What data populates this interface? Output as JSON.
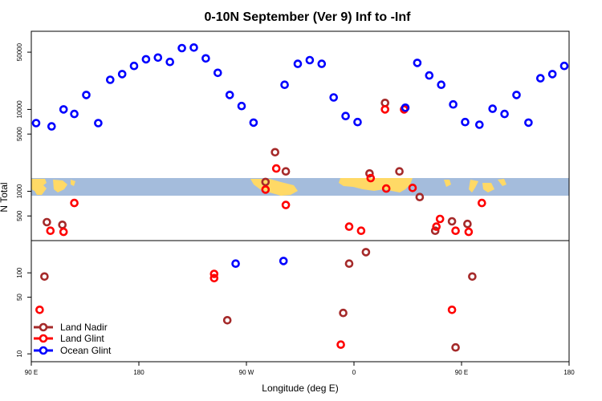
{
  "chart_data": {
    "type": "scatter",
    "title": "0-10N September (Ver 9)   Inf to -Inf",
    "xlabel": "Longitude (deg E)",
    "ylabel": "N Total",
    "x_ticks": [
      {
        "value": 90,
        "label": "90 E"
      },
      {
        "value": 180,
        "label": "180"
      },
      {
        "value": 270,
        "label": "90 W"
      },
      {
        "value": 360,
        "label": "0"
      },
      {
        "value": 450,
        "label": "90 E"
      },
      {
        "value": 540,
        "label": "180"
      }
    ],
    "xlim": [
      90,
      540
    ],
    "y_ticks_top": [
      50000,
      10000,
      5000,
      1000,
      500
    ],
    "y_ticks_bottom": [
      100,
      50,
      10
    ],
    "ylim_top_log": [
      250,
      90000
    ],
    "ylim_bottom_log": [
      8,
      250
    ],
    "legend_position": "bottom-left",
    "grid": false,
    "colors": {
      "Land Nadir": "#a52a2a",
      "Land Glint": "#ff0000",
      "Ocean Glint": "#0000ff",
      "land": "#ffd966",
      "ocean": "#a4bcdc"
    },
    "series": [
      {
        "name": "Land Nadir",
        "color": "#a52a2a",
        "points": [
          [
            103,
            420
          ],
          [
            116,
            390
          ],
          [
            286,
            1300
          ],
          [
            294,
            3000
          ],
          [
            303,
            1750
          ],
          [
            373,
            1650
          ],
          [
            386,
            12000
          ],
          [
            398,
            1750
          ],
          [
            415,
            850
          ],
          [
            428,
            330
          ],
          [
            442,
            430
          ],
          [
            455,
            400
          ],
          [
            254,
            26
          ],
          [
            351,
            32
          ],
          [
            356,
            130
          ],
          [
            370,
            180
          ],
          [
            445,
            12
          ],
          [
            459,
            90
          ],
          [
            101,
            90
          ]
        ]
      },
      {
        "name": "Land Glint",
        "color": "#ff0000",
        "points": [
          [
            106,
            330
          ],
          [
            117,
            320
          ],
          [
            126,
            720
          ],
          [
            286,
            1050
          ],
          [
            295,
            1900
          ],
          [
            303,
            680
          ],
          [
            356,
            370
          ],
          [
            366,
            330
          ],
          [
            374,
            1450
          ],
          [
            387,
            1080
          ],
          [
            386,
            10000
          ],
          [
            402,
            10000
          ],
          [
            409,
            1100
          ],
          [
            429,
            370
          ],
          [
            432,
            460
          ],
          [
            445,
            330
          ],
          [
            456,
            320
          ],
          [
            467,
            720
          ],
          [
            97,
            35
          ],
          [
            243,
            97
          ],
          [
            243,
            86
          ],
          [
            349,
            13
          ],
          [
            442,
            35
          ]
        ]
      },
      {
        "name": "Ocean Glint",
        "color": "#0000ff",
        "points": [
          [
            94,
            6800
          ],
          [
            107,
            6200
          ],
          [
            117,
            10000
          ],
          [
            126,
            8800
          ],
          [
            136,
            15000
          ],
          [
            146,
            6800
          ],
          [
            156,
            23000
          ],
          [
            166,
            27000
          ],
          [
            176,
            34000
          ],
          [
            186,
            41000
          ],
          [
            196,
            43000
          ],
          [
            206,
            38000
          ],
          [
            216,
            56000
          ],
          [
            226,
            57000
          ],
          [
            236,
            42000
          ],
          [
            246,
            28000
          ],
          [
            256,
            15000
          ],
          [
            266,
            11000
          ],
          [
            276,
            6900
          ],
          [
            302,
            20000
          ],
          [
            313,
            36000
          ],
          [
            323,
            40000
          ],
          [
            333,
            36000
          ],
          [
            343,
            14000
          ],
          [
            353,
            8300
          ],
          [
            363,
            7000
          ],
          [
            403,
            10500
          ],
          [
            413,
            37000
          ],
          [
            423,
            26000
          ],
          [
            433,
            20000
          ],
          [
            443,
            11500
          ],
          [
            453,
            7000
          ],
          [
            465,
            6500
          ],
          [
            476,
            10200
          ],
          [
            486,
            8800
          ],
          [
            496,
            15000
          ],
          [
            506,
            6900
          ],
          [
            516,
            24000
          ],
          [
            526,
            27000
          ],
          [
            536,
            34000
          ],
          [
            261,
            130
          ],
          [
            301,
            140
          ]
        ]
      }
    ]
  }
}
